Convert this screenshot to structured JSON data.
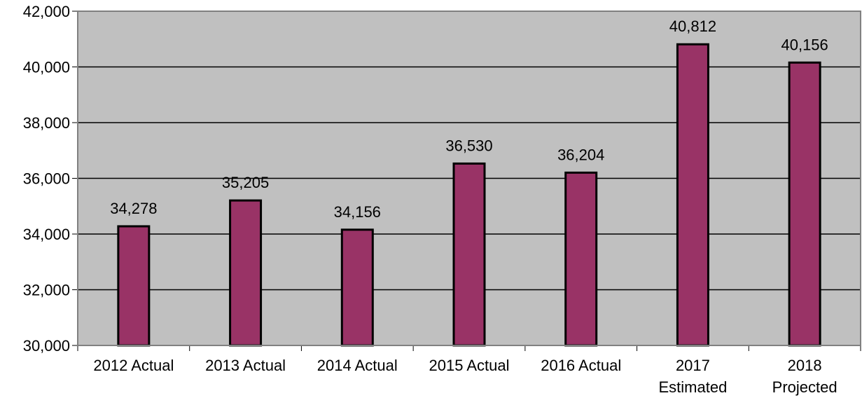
{
  "chart_data": {
    "type": "bar",
    "title": "",
    "xlabel": "",
    "ylabel": "",
    "categories": [
      [
        "2012 Actual"
      ],
      [
        "2013 Actual"
      ],
      [
        "2014 Actual"
      ],
      [
        "2015 Actual"
      ],
      [
        "2016 Actual"
      ],
      [
        "2017",
        "Estimated"
      ],
      [
        "2018",
        "Projected"
      ]
    ],
    "values": [
      34278,
      35205,
      34156,
      36530,
      36204,
      40812,
      40156
    ],
    "value_labels": [
      "34,278",
      "35,205",
      "34,156",
      "36,530",
      "36,204",
      "40,812",
      "40,156"
    ],
    "ylim": [
      30000,
      42000
    ],
    "yticks": [
      30000,
      32000,
      34000,
      36000,
      38000,
      40000,
      42000
    ],
    "ytick_labels": [
      "30,000",
      "32,000",
      "34,000",
      "36,000",
      "38,000",
      "40,000",
      "42,000"
    ],
    "grid": true,
    "legend": "none",
    "colors": {
      "bar_fill": "#993366",
      "bar_stroke": "#000000",
      "plot_background": "#c0c0c0",
      "grid": "#000000"
    }
  }
}
